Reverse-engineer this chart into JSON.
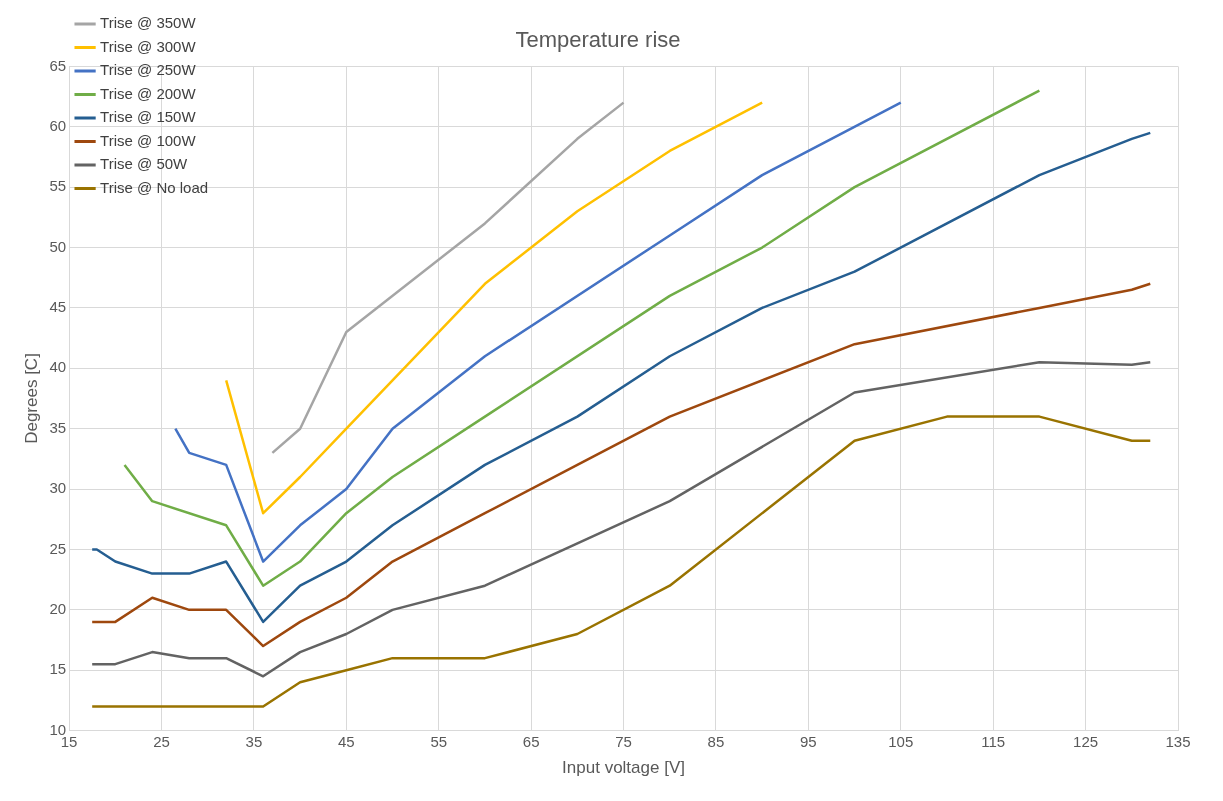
{
  "chart_data": {
    "type": "line",
    "title": "Temperature rise",
    "xlabel": "Input voltage [V]",
    "ylabel": "Degrees [C]",
    "xlim": [
      15,
      135
    ],
    "xticks": [
      15,
      25,
      35,
      45,
      55,
      65,
      75,
      85,
      95,
      105,
      115,
      125,
      135
    ],
    "ylim": [
      10,
      65
    ],
    "yticks": [
      10,
      15,
      20,
      25,
      30,
      35,
      40,
      45,
      50,
      55,
      60,
      65
    ],
    "grid": true,
    "legend": "top left",
    "marker": "none",
    "line_style": "solid",
    "series": [
      {
        "name": "Trise @ 350W",
        "color": "#a5a5a5",
        "x": [
          37,
          40,
          45,
          60,
          70,
          75
        ],
        "values": [
          33,
          35,
          43,
          52,
          59,
          62
        ]
      },
      {
        "name": "Trise @ 300W",
        "color": "#ffc000",
        "x": [
          32,
          36,
          40,
          45,
          50,
          60,
          70,
          80,
          90
        ],
        "values": [
          39,
          28,
          31,
          35,
          39,
          47,
          53,
          58,
          62
        ]
      },
      {
        "name": "Trise @ 250W",
        "color": "#4472c4",
        "x": [
          26.5,
          28,
          32,
          36,
          40,
          45,
          50,
          60,
          80,
          90,
          105
        ],
        "values": [
          35,
          33,
          32,
          24,
          27,
          30,
          35,
          41,
          51,
          56,
          62
        ]
      },
      {
        "name": "Trise @ 200W",
        "color": "#70ad47",
        "x": [
          21,
          24,
          32,
          36,
          40,
          45,
          50,
          60,
          80,
          90,
          100,
          120
        ],
        "values": [
          32,
          29,
          27,
          22,
          24,
          28,
          31,
          36,
          46,
          50,
          55,
          63
        ]
      },
      {
        "name": "Trise @ 150W",
        "color": "#255e91",
        "x": [
          17.5,
          18,
          20,
          24,
          28,
          32,
          36,
          40,
          45,
          50,
          60,
          70,
          80,
          90,
          100,
          120,
          130,
          132
        ],
        "values": [
          25,
          25,
          24,
          23,
          23,
          24,
          19,
          22,
          24,
          27,
          32,
          36,
          41,
          45,
          48,
          56,
          59,
          59.5
        ]
      },
      {
        "name": "Trise @ 100W",
        "color": "#9e480e",
        "x": [
          17.5,
          20,
          24,
          28,
          32,
          36,
          40,
          45,
          50,
          60,
          70,
          80,
          100,
          120,
          130,
          132
        ],
        "values": [
          19,
          19,
          21,
          20,
          20,
          17,
          19,
          21,
          24,
          28,
          32,
          36,
          42,
          45,
          46.5,
          47
        ]
      },
      {
        "name": "Trise @ 50W",
        "color": "#636363",
        "x": [
          17.5,
          20,
          24,
          28,
          32,
          36,
          40,
          45,
          50,
          60,
          80,
          100,
          120,
          130,
          132
        ],
        "values": [
          15.5,
          15.5,
          16.5,
          16,
          16,
          14.5,
          16.5,
          18,
          20,
          22,
          29,
          38,
          40.5,
          40.3,
          40.5
        ]
      },
      {
        "name": "Trise @ No load",
        "color": "#997300",
        "x": [
          17.5,
          24,
          32,
          36,
          40,
          45,
          50,
          60,
          70,
          80,
          100,
          110,
          120,
          130,
          132
        ],
        "values": [
          12,
          12,
          12,
          12,
          14,
          15,
          16,
          16,
          18,
          22,
          34,
          36,
          36,
          34,
          34
        ]
      }
    ]
  }
}
